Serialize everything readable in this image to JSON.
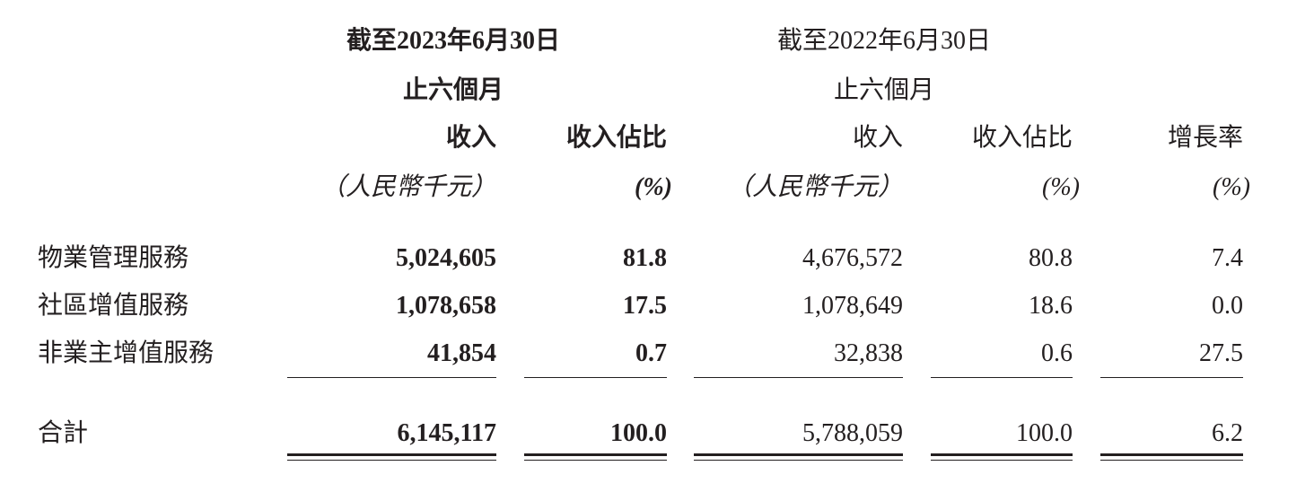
{
  "header": {
    "period_2023": "截至2023年6月30日",
    "period_2023_sub": "止六個月",
    "period_2022": "截至2022年6月30日",
    "period_2022_sub": "止六個月",
    "columns": [
      {
        "label": "收入",
        "unit": "（人民幣千元）"
      },
      {
        "label": "收入佔比",
        "unit": "(%)"
      },
      {
        "label": "收入",
        "unit": "（人民幣千元）"
      },
      {
        "label": "收入佔比",
        "unit": "(%)"
      },
      {
        "label": "增長率",
        "unit": "(%)"
      }
    ]
  },
  "rows": [
    {
      "label": "物業管理服務",
      "values": [
        "5,024,605",
        "81.8",
        "4,676,572",
        "80.8",
        "7.4"
      ]
    },
    {
      "label": "社區增值服務",
      "values": [
        "1,078,658",
        "17.5",
        "1,078,649",
        "18.6",
        "0.0"
      ]
    },
    {
      "label": "非業主增值服務",
      "values": [
        "41,854",
        "0.7",
        "32,838",
        "0.6",
        "27.5"
      ]
    }
  ],
  "total": {
    "label": "合計",
    "values": [
      "6,145,117",
      "100.0",
      "5,788,059",
      "100.0",
      "6.2"
    ]
  }
}
